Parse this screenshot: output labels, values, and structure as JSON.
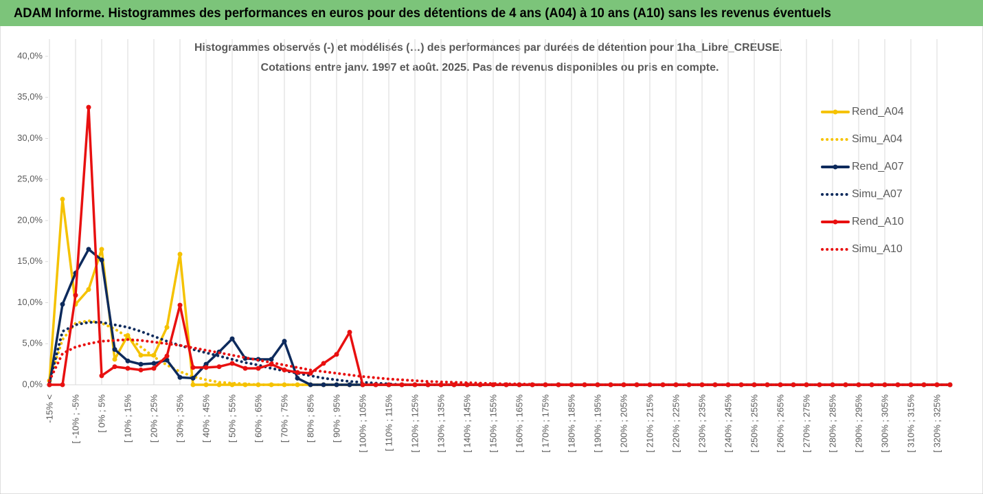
{
  "header": {
    "title": "ADAM Informe. Histogrammes des performances en euros pour des détentions de 4 ans (A04) à 10 ans (A10) sans les revenus éventuels"
  },
  "chart_data": {
    "type": "line",
    "title": "Histogrammes observés (-) et modélisés (…) des performances par durées de détention pour 1ha_Libre_CREUSE.",
    "subtitle": "Cotations entre janv. 1997 et août. 2025. Pas de revenus disponibles ou pris en compte.",
    "categories": [
      "-15% <",
      null,
      "[ -10% ; -5%",
      null,
      "[ 0% ; 5%",
      null,
      "[ 10% ; 15%",
      null,
      "[ 20% ; 25%",
      null,
      "[ 30% ; 35%",
      null,
      "[ 40% ; 45%",
      null,
      "[ 50% ; 55%",
      null,
      "[ 60% ; 65%",
      null,
      "[ 70% ; 75%",
      null,
      "[ 80% ; 85%",
      null,
      "[ 90% ; 95%",
      null,
      "[ 100% ; 105%",
      null,
      "[ 110% ; 115%",
      null,
      "[ 120% ; 125%",
      null,
      "[ 130% ; 135%",
      null,
      "[ 140% ; 145%",
      null,
      "[ 150% ; 155%",
      null,
      "[ 160% ; 165%",
      null,
      "[ 170% ; 175%",
      null,
      "[ 180% ; 185%",
      null,
      "[ 190% ; 195%",
      null,
      "[ 200% ; 205%",
      null,
      "[ 210% ; 215%",
      null,
      "[ 220% ; 225%",
      null,
      "[ 230% ; 235%",
      null,
      "[ 240% ; 245%",
      null,
      "[ 250% ; 255%",
      null,
      "[ 260% ; 265%",
      null,
      "[ 270% ; 275%",
      null,
      "[ 280% ; 285%",
      null,
      "[ 290% ; 295%",
      null,
      "[ 300% ; 305%",
      null,
      "[ 310% ; 315%",
      null,
      "[ 320% ; 325%",
      null
    ],
    "series": [
      {
        "name": "Rend_A04",
        "color": "#f5c200",
        "dotted": false,
        "values": [
          0.5,
          22.6,
          9.8,
          11.6,
          16.5,
          3.1,
          6.0,
          3.6,
          3.6,
          7.0,
          15.9,
          0,
          0,
          0,
          0,
          0,
          0,
          0,
          0,
          0,
          0,
          0,
          0,
          0,
          0,
          0,
          0,
          0,
          0,
          0,
          0,
          0,
          0,
          0,
          0,
          0,
          0,
          0,
          0,
          0,
          0,
          0,
          0,
          0,
          0,
          0,
          0,
          0,
          0,
          0,
          0,
          0,
          0,
          0,
          0,
          0,
          0,
          0,
          0,
          0,
          0,
          0,
          0,
          0,
          0,
          0,
          0,
          0,
          0,
          0
        ]
      },
      {
        "name": "Simu_A04",
        "color": "#f5c200",
        "dotted": true,
        "values": [
          0.5,
          5.5,
          7.5,
          7.8,
          7.5,
          6.8,
          5.8,
          4.6,
          3.4,
          2.4,
          1.6,
          1.0,
          0.6,
          0.3,
          0.2,
          0.1,
          0,
          0,
          0,
          0,
          0,
          0,
          0,
          0,
          0,
          0,
          0,
          0,
          0,
          0,
          0,
          0,
          0,
          0,
          0,
          0,
          0,
          0,
          0,
          0,
          0,
          0,
          0,
          0,
          0,
          0,
          0,
          0,
          0,
          0,
          0,
          0,
          0,
          0,
          0,
          0,
          0,
          0,
          0,
          0,
          0,
          0,
          0,
          0,
          0,
          0,
          0,
          0,
          0,
          0
        ]
      },
      {
        "name": "Rend_A07",
        "color": "#0d2a5c",
        "dotted": false,
        "values": [
          0,
          9.8,
          13.6,
          16.5,
          15.2,
          4.3,
          2.9,
          2.5,
          2.6,
          3.0,
          0.9,
          0.8,
          2.5,
          4.0,
          5.6,
          3.2,
          3.1,
          3.1,
          5.3,
          0.8,
          0,
          0,
          0,
          0,
          0,
          0,
          0,
          0,
          0,
          0,
          0,
          0,
          0,
          0,
          0,
          0,
          0,
          0,
          0,
          0,
          0,
          0,
          0,
          0,
          0,
          0,
          0,
          0,
          0,
          0,
          0,
          0,
          0,
          0,
          0,
          0,
          0,
          0,
          0,
          0,
          0,
          0,
          0,
          0,
          0,
          0,
          0,
          0,
          0,
          0
        ]
      },
      {
        "name": "Simu_A07",
        "color": "#0d2a5c",
        "dotted": true,
        "values": [
          0.3,
          6.5,
          7.3,
          7.6,
          7.6,
          7.3,
          7.0,
          6.5,
          5.9,
          5.3,
          4.8,
          4.3,
          3.9,
          3.5,
          3.1,
          2.7,
          2.4,
          2.0,
          1.7,
          1.4,
          1.1,
          0.8,
          0.6,
          0.4,
          0.3,
          0.2,
          0.1,
          0,
          0,
          0,
          0,
          0,
          0,
          0,
          0,
          0,
          0,
          0,
          0,
          0,
          0,
          0,
          0,
          0,
          0,
          0,
          0,
          0,
          0,
          0,
          0,
          0,
          0,
          0,
          0,
          0,
          0,
          0,
          0,
          0,
          0,
          0,
          0,
          0,
          0,
          0,
          0,
          0,
          0,
          0
        ]
      },
      {
        "name": "Rend_A10",
        "color": "#e81010",
        "dotted": false,
        "values": [
          0,
          0,
          10.9,
          33.8,
          1.1,
          2.2,
          2.0,
          1.8,
          2.0,
          3.5,
          9.7,
          2.1,
          2.1,
          2.2,
          2.6,
          2.0,
          2.0,
          2.5,
          1.8,
          1.5,
          1.4,
          2.6,
          3.7,
          6.4,
          0,
          0,
          0,
          0,
          0,
          0,
          0,
          0,
          0,
          0,
          0,
          0,
          0,
          0,
          0,
          0,
          0,
          0,
          0,
          0,
          0,
          0,
          0,
          0,
          0,
          0,
          0,
          0,
          0,
          0,
          0,
          0,
          0,
          0,
          0,
          0,
          0,
          0,
          0,
          0,
          0,
          0,
          0,
          0,
          0,
          0
        ]
      },
      {
        "name": "Simu_A10",
        "color": "#e81010",
        "dotted": true,
        "values": [
          0.5,
          3.8,
          4.6,
          5.0,
          5.3,
          5.4,
          5.5,
          5.4,
          5.2,
          5.0,
          4.8,
          4.5,
          4.2,
          3.9,
          3.6,
          3.3,
          3.0,
          2.7,
          2.4,
          2.1,
          1.8,
          1.6,
          1.4,
          1.2,
          1.0,
          0.85,
          0.7,
          0.6,
          0.5,
          0.4,
          0.35,
          0.3,
          0.25,
          0.2,
          0.15,
          0.1,
          0.1,
          0.05,
          0,
          0,
          0,
          0,
          0,
          0,
          0,
          0,
          0,
          0,
          0,
          0,
          0,
          0,
          0,
          0,
          0,
          0,
          0,
          0,
          0,
          0,
          0,
          0,
          0,
          0,
          0,
          0,
          0,
          0,
          0,
          0
        ]
      }
    ],
    "ylim": [
      0,
      40
    ],
    "yticks": [
      {
        "value": 0,
        "label": "0,0%"
      },
      {
        "value": 5,
        "label": "5,0%"
      },
      {
        "value": 10,
        "label": "10,0%"
      },
      {
        "value": 15,
        "label": "15,0%"
      },
      {
        "value": 20,
        "label": "20,0%"
      },
      {
        "value": 25,
        "label": "25,0%"
      },
      {
        "value": 30,
        "label": "30,0%"
      },
      {
        "value": 35,
        "label": "35,0%"
      },
      {
        "value": 40,
        "label": "40,0%"
      }
    ],
    "grid": true,
    "legend": "right"
  }
}
